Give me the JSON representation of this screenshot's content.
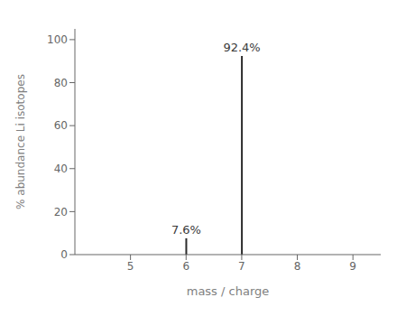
{
  "chart_data": {
    "type": "bar",
    "x": [
      6,
      7
    ],
    "values": [
      7.6,
      92.4
    ],
    "value_labels": [
      "7.6%",
      "92.4%"
    ],
    "data_labels": true,
    "color": "#2b2b2b",
    "xlabel": "mass / charge",
    "ylabel": "% abundance Li isotopes",
    "xlim": [
      4,
      9.5
    ],
    "ylim": [
      0,
      105
    ],
    "xticks": [
      5,
      6,
      7,
      8,
      9
    ],
    "yticks": [
      0,
      20,
      40,
      60,
      80,
      100
    ]
  }
}
